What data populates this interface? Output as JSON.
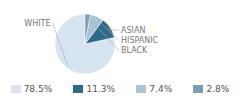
{
  "chart_data": {
    "type": "pie",
    "categories": [
      "WHITE",
      "ASIAN",
      "HISPANIC",
      "BLACK"
    ],
    "values": [
      78.5,
      11.3,
      7.4,
      2.8
    ],
    "value_labels": [
      "78.5%",
      "11.3%",
      "7.4%",
      "2.8%"
    ],
    "colors": [
      "#d6e4f0",
      "#2e6b8a",
      "#a8c5d6",
      "#7a9eb8"
    ],
    "legend": "bottom"
  }
}
